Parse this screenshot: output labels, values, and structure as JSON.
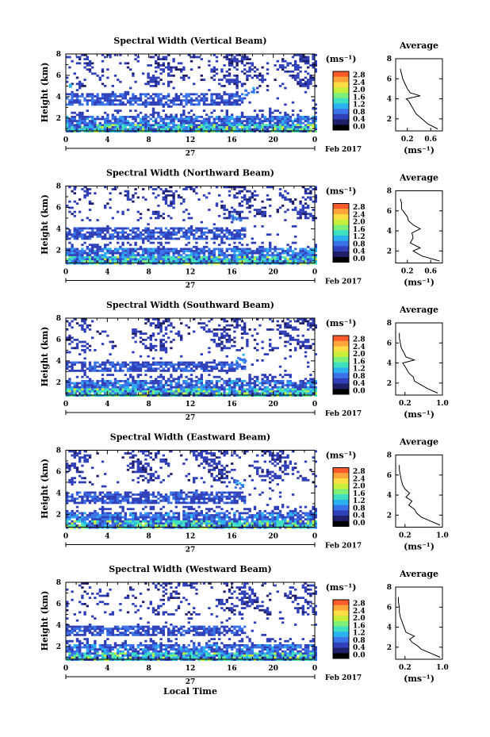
{
  "figure": {
    "xlabel": "Local Time",
    "date_day": "27",
    "date_label": "Feb 2017",
    "unit_label": "(ms⁻¹)",
    "avg_title": "Average",
    "avg_xlabel": "(ms⁻¹)"
  },
  "colorbar": {
    "ticks": [
      "2.8",
      "2.4",
      "2.0",
      "1.6",
      "1.2",
      "0.8",
      "0.4",
      "0.0"
    ],
    "colors": [
      "#ff5a2b",
      "#ffa63a",
      "#ffdd44",
      "#c8f03a",
      "#7ef07a",
      "#3fe0c0",
      "#2bb0f0",
      "#3a72e8",
      "#3040b8",
      "#20206a",
      "#000000"
    ],
    "min": 0.0,
    "max": 2.8
  },
  "chart_data": [
    {
      "type": "heatmap",
      "title": "Spectral Width (Vertical Beam)",
      "ylabel": "Height (km)",
      "x_ticks": [
        "0",
        "4",
        "8",
        "12",
        "16",
        "20",
        "0"
      ],
      "xlim": [
        0,
        24
      ],
      "y_ticks": [
        "2",
        "4",
        "6",
        "8"
      ],
      "ylim": [
        0.8,
        8
      ],
      "avg": {
        "x_ticks": [
          "0.2",
          "0.6"
        ],
        "xlim": [
          0.0,
          0.8
        ],
        "y_ticks": [
          "2",
          "4",
          "6",
          "8"
        ],
        "ylim": [
          0.8,
          8
        ],
        "profile": [
          [
            0.72,
            1.0
          ],
          [
            0.55,
            1.5
          ],
          [
            0.45,
            2.0
          ],
          [
            0.35,
            2.5
          ],
          [
            0.3,
            3.0
          ],
          [
            0.25,
            3.5
          ],
          [
            0.22,
            3.8
          ],
          [
            0.18,
            4.0
          ],
          [
            0.42,
            4.3
          ],
          [
            0.25,
            4.6
          ],
          [
            0.2,
            5.0
          ],
          [
            0.16,
            5.5
          ],
          [
            0.12,
            6.0
          ],
          [
            0.1,
            6.5
          ],
          [
            0.08,
            7.0
          ]
        ]
      },
      "heat": {
        "seed": 11,
        "plumes": [
          [
            17.6,
            4.6
          ]
        ],
        "upper_coverage": 0.55,
        "mid_band": [
          3.2,
          4.4
        ],
        "cloud_left": [
          [
            0.3,
            5.2
          ]
        ]
      }
    },
    {
      "type": "heatmap",
      "title": "Spectral Width (Northward Beam)",
      "ylabel": "Height (km)",
      "x_ticks": [
        "0",
        "4",
        "8",
        "12",
        "16",
        "20",
        "0"
      ],
      "xlim": [
        0,
        24
      ],
      "y_ticks": [
        "2",
        "4",
        "6",
        "8"
      ],
      "ylim": [
        0.8,
        8
      ],
      "avg": {
        "x_ticks": [
          "0.2",
          "0.6"
        ],
        "xlim": [
          0.0,
          0.8
        ],
        "y_ticks": [
          "2",
          "4",
          "6",
          "8"
        ],
        "ylim": [
          0.8,
          8
        ],
        "profile": [
          [
            0.75,
            1.0
          ],
          [
            0.45,
            1.5
          ],
          [
            0.3,
            2.0
          ],
          [
            0.42,
            2.3
          ],
          [
            0.25,
            2.8
          ],
          [
            0.3,
            3.3
          ],
          [
            0.28,
            3.8
          ],
          [
            0.42,
            4.2
          ],
          [
            0.3,
            4.6
          ],
          [
            0.22,
            5.0
          ],
          [
            0.2,
            5.4
          ],
          [
            0.15,
            5.8
          ],
          [
            0.1,
            6.2
          ],
          [
            0.1,
            6.8
          ],
          [
            0.08,
            7.2
          ]
        ]
      },
      "heat": {
        "seed": 23,
        "plumes": [
          [
            16.4,
            5.0
          ]
        ],
        "upper_coverage": 0.45,
        "mid_band": [
          3.0,
          4.2
        ],
        "cloud_left": []
      }
    },
    {
      "type": "heatmap",
      "title": "Spectral Width (Southward Beam)",
      "ylabel": "Height (km)",
      "x_ticks": [
        "0",
        "4",
        "8",
        "12",
        "16",
        "20",
        "0"
      ],
      "xlim": [
        0,
        24
      ],
      "y_ticks": [
        "2",
        "4",
        "6",
        "8"
      ],
      "ylim": [
        0.8,
        8
      ],
      "avg": {
        "x_ticks": [
          "0.2",
          "1.0"
        ],
        "xlim": [
          0.0,
          1.0
        ],
        "y_ticks": [
          "2",
          "4",
          "6",
          "8"
        ],
        "ylim": [
          0.8,
          8
        ],
        "profile": [
          [
            0.9,
            1.0
          ],
          [
            0.7,
            1.4
          ],
          [
            0.55,
            1.8
          ],
          [
            0.4,
            2.2
          ],
          [
            0.38,
            2.6
          ],
          [
            0.28,
            3.0
          ],
          [
            0.22,
            3.5
          ],
          [
            0.15,
            4.0
          ],
          [
            0.4,
            4.3
          ],
          [
            0.22,
            4.6
          ],
          [
            0.18,
            5.0
          ],
          [
            0.12,
            5.5
          ],
          [
            0.1,
            6.0
          ],
          [
            0.08,
            6.5
          ],
          [
            0.08,
            7.0
          ]
        ]
      },
      "heat": {
        "seed": 37,
        "plumes": [
          [
            16.8,
            4.4
          ]
        ],
        "upper_coverage": 0.5,
        "mid_band": [
          3.0,
          4.1
        ],
        "cloud_left": []
      }
    },
    {
      "type": "heatmap",
      "title": "Spectral Width (Eastward Beam)",
      "ylabel": "Height (km)",
      "x_ticks": [
        "0",
        "4",
        "8",
        "12",
        "16",
        "20",
        "0"
      ],
      "xlim": [
        0,
        24
      ],
      "y_ticks": [
        "2",
        "4",
        "6",
        "8"
      ],
      "ylim": [
        0.8,
        8
      ],
      "avg": {
        "x_ticks": [
          "0.2",
          "1.0"
        ],
        "xlim": [
          0.0,
          1.0
        ],
        "y_ticks": [
          "2",
          "4",
          "6",
          "8"
        ],
        "ylim": [
          0.8,
          8
        ],
        "profile": [
          [
            0.95,
            1.0
          ],
          [
            0.75,
            1.4
          ],
          [
            0.55,
            1.8
          ],
          [
            0.45,
            2.2
          ],
          [
            0.4,
            2.6
          ],
          [
            0.28,
            3.0
          ],
          [
            0.35,
            3.4
          ],
          [
            0.22,
            3.8
          ],
          [
            0.3,
            4.2
          ],
          [
            0.2,
            4.6
          ],
          [
            0.15,
            5.0
          ],
          [
            0.12,
            5.5
          ],
          [
            0.1,
            6.0
          ],
          [
            0.08,
            6.5
          ],
          [
            0.08,
            7.0
          ]
        ]
      },
      "heat": {
        "seed": 51,
        "plumes": [
          [
            16.6,
            4.9
          ]
        ],
        "upper_coverage": 0.5,
        "mid_band": [
          3.0,
          4.2
        ],
        "cloud_left": []
      }
    },
    {
      "type": "heatmap",
      "title": "Spectral Width (Westward Beam)",
      "ylabel": "Height (km)",
      "x_ticks": [
        "0",
        "4",
        "8",
        "12",
        "16",
        "20",
        "0"
      ],
      "xlim": [
        0,
        24
      ],
      "y_ticks": [
        "2",
        "4",
        "6",
        "8"
      ],
      "ylim": [
        0.8,
        8
      ],
      "avg": {
        "x_ticks": [
          "0.2",
          "1.0"
        ],
        "xlim": [
          0.0,
          1.0
        ],
        "y_ticks": [
          "2",
          "4",
          "6",
          "8"
        ],
        "ylim": [
          0.8,
          8
        ],
        "profile": [
          [
            0.95,
            1.0
          ],
          [
            0.75,
            1.4
          ],
          [
            0.55,
            1.8
          ],
          [
            0.45,
            2.2
          ],
          [
            0.35,
            2.5
          ],
          [
            0.3,
            2.8
          ],
          [
            0.4,
            3.1
          ],
          [
            0.22,
            3.5
          ],
          [
            0.18,
            4.0
          ],
          [
            0.14,
            4.5
          ],
          [
            0.1,
            5.0
          ],
          [
            0.08,
            5.5
          ],
          [
            0.08,
            6.0
          ],
          [
            0.06,
            6.5
          ],
          [
            0.06,
            7.0
          ]
        ]
      },
      "heat": {
        "seed": 67,
        "plumes": [],
        "upper_coverage": 0.5,
        "mid_band": [
          3.0,
          4.1
        ],
        "cloud_left": []
      }
    }
  ]
}
